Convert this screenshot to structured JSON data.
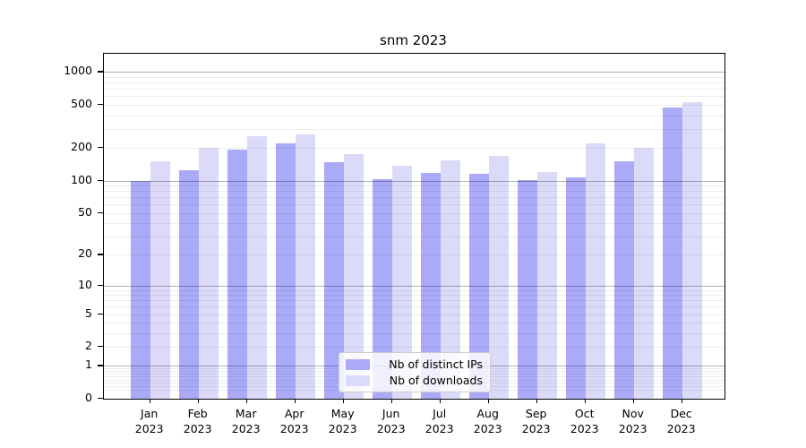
{
  "title": "snm 2023",
  "colors": {
    "distinct_ips": "#aaaaf8",
    "downloads": "#dbdbf9",
    "grid_major": "rgba(0,0,0,0.30)",
    "grid_minor": "rgba(0,0,0,0.07)",
    "axis": "#000000",
    "legend_border": "#cccccc",
    "background": "#ffffff"
  },
  "legend": {
    "items": [
      {
        "label": "Nb of distinct IPs",
        "color_key": "distinct_ips"
      },
      {
        "label": "Nb of downloads",
        "color_key": "downloads"
      }
    ]
  },
  "chart_data": {
    "type": "bar",
    "title": "snm 2023",
    "categories": [
      "Jan 2023",
      "Feb 2023",
      "Mar 2023",
      "Apr 2023",
      "May 2023",
      "Jun 2023",
      "Jul 2023",
      "Aug 2023",
      "Sep 2023",
      "Oct 2023",
      "Nov 2023",
      "Dec 2023"
    ],
    "x_tick_line1": [
      "Jan",
      "Feb",
      "Mar",
      "Apr",
      "May",
      "Jun",
      "Jul",
      "Aug",
      "Sep",
      "Oct",
      "Nov",
      "Dec"
    ],
    "x_tick_line2": [
      "2023",
      "2023",
      "2023",
      "2023",
      "2023",
      "2023",
      "2023",
      "2023",
      "2023",
      "2023",
      "2023",
      "2023"
    ],
    "series": [
      {
        "name": "Nb of distinct IPs",
        "color_key": "distinct_ips",
        "values": [
          100,
          124,
          192,
          222,
          148,
          103,
          118,
          115,
          101,
          108,
          151,
          470
        ]
      },
      {
        "name": "Nb of downloads",
        "color_key": "downloads",
        "values": [
          150,
          200,
          255,
          265,
          176,
          137,
          154,
          168,
          119,
          220,
          200,
          530
        ]
      }
    ],
    "xlabel": "",
    "ylabel": "",
    "yscale": "log1p",
    "y_ticks": [
      0,
      1,
      2,
      5,
      10,
      20,
      50,
      100,
      200,
      500,
      1000
    ],
    "ylim": [
      0,
      1500
    ],
    "grid": true,
    "grid_above_bars": true,
    "legend_position": "lower center"
  }
}
